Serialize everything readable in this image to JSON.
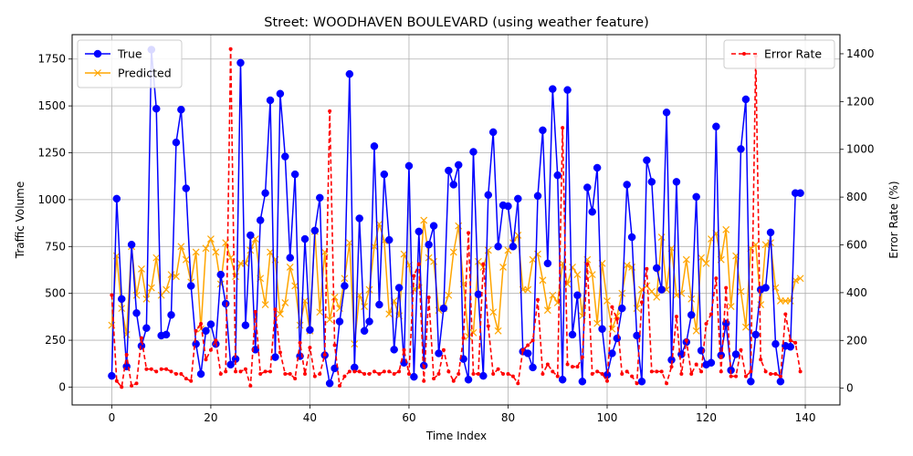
{
  "chart_data": {
    "type": "line",
    "title": "Street: WOODHAVEN BOULEVARD (using weather feature)",
    "xlabel": "Time Index",
    "ylabel": "Traffic Volume",
    "ylabel_right": "Error Rate (%)",
    "xlim": [
      -8,
      147
    ],
    "ylim": [
      -95,
      1880
    ],
    "ylim_right": [
      -70,
      1480
    ],
    "xticks": [
      0,
      20,
      40,
      60,
      80,
      100,
      120,
      140
    ],
    "yticks": [
      0,
      250,
      500,
      750,
      1000,
      1250,
      1500,
      1750
    ],
    "yticks_right": [
      0,
      200,
      400,
      600,
      800,
      1000,
      1200,
      1400
    ],
    "grid": true,
    "legend_left": "upper-left",
    "legend_right": "upper-right",
    "x": [
      0,
      1,
      2,
      3,
      4,
      5,
      6,
      7,
      8,
      9,
      10,
      11,
      12,
      13,
      14,
      15,
      16,
      17,
      18,
      19,
      20,
      21,
      22,
      23,
      24,
      25,
      26,
      27,
      28,
      29,
      30,
      31,
      32,
      33,
      34,
      35,
      36,
      37,
      38,
      39,
      40,
      41,
      42,
      43,
      44,
      45,
      46,
      47,
      48,
      49,
      50,
      51,
      52,
      53,
      54,
      55,
      56,
      57,
      58,
      59,
      60,
      61,
      62,
      63,
      64,
      65,
      66,
      67,
      68,
      69,
      70,
      71,
      72,
      73,
      74,
      75,
      76,
      77,
      78,
      79,
      80,
      81,
      82,
      83,
      84,
      85,
      86,
      87,
      88,
      89,
      90,
      91,
      92,
      93,
      94,
      95,
      96,
      97,
      98,
      99,
      100,
      101,
      102,
      103,
      104,
      105,
      106,
      107,
      108,
      109,
      110,
      111,
      112,
      113,
      114,
      115,
      116,
      117,
      118,
      119,
      120,
      121,
      122,
      123,
      124,
      125,
      126,
      127,
      128,
      129,
      130,
      131,
      132,
      133,
      134,
      135,
      136,
      137,
      138,
      139
    ],
    "series": [
      {
        "name": "True",
        "axis": "left",
        "color": "#0000ff",
        "marker": "circle",
        "linestyle": "solid",
        "values": [
          60,
          1005,
          470,
          110,
          760,
          395,
          220,
          315,
          1800,
          1485,
          275,
          280,
          385,
          1305,
          1480,
          1060,
          540,
          230,
          70,
          300,
          335,
          230,
          600,
          445,
          120,
          150,
          1730,
          330,
          810,
          200,
          890,
          1035,
          1530,
          160,
          1565,
          1230,
          690,
          1135,
          165,
          790,
          305,
          835,
          1010,
          170,
          20,
          100,
          350,
          540,
          1670,
          105,
          900,
          300,
          350,
          1285,
          440,
          1135,
          785,
          200,
          530,
          130,
          1180,
          55,
          830,
          115,
          760,
          860,
          180,
          420,
          1155,
          1080,
          1185,
          150,
          40,
          1255,
          495,
          60,
          1025,
          1360,
          750,
          970,
          965,
          750,
          1005,
          190,
          180,
          105,
          1020,
          1370,
          660,
          1590,
          1130,
          40,
          1585,
          280,
          490,
          30,
          1065,
          935,
          1170,
          310,
          65,
          180,
          260,
          420,
          1080,
          800,
          275,
          30,
          1210,
          1095,
          635,
          520,
          1465,
          145,
          1095,
          175,
          240,
          385,
          1015,
          195,
          120,
          130,
          1390,
          170,
          340,
          90,
          175,
          1270,
          1535,
          30,
          280,
          520,
          530,
          825,
          230,
          30,
          220,
          215,
          1035,
          1035
        ]
      },
      {
        "name": "Predicted",
        "axis": "left",
        "color": "#ffa500",
        "marker": "x",
        "linestyle": "solid",
        "values": [
          330,
          700,
          420,
          280,
          750,
          490,
          630,
          470,
          530,
          690,
          490,
          520,
          600,
          590,
          750,
          680,
          560,
          720,
          310,
          740,
          790,
          720,
          550,
          770,
          690,
          590,
          660,
          660,
          730,
          790,
          580,
          440,
          720,
          680,
          390,
          450,
          640,
          540,
          330,
          460,
          300,
          830,
          400,
          720,
          360,
          480,
          420,
          580,
          770,
          230,
          490,
          430,
          520,
          750,
          870,
          780,
          390,
          460,
          380,
          710,
          650,
          520,
          530,
          890,
          690,
          670,
          410,
          420,
          490,
          720,
          860,
          550,
          270,
          290,
          670,
          640,
          730,
          400,
          300,
          640,
          730,
          770,
          810,
          520,
          520,
          680,
          710,
          570,
          410,
          490,
          450,
          660,
          550,
          640,
          600,
          380,
          680,
          600,
          340,
          660,
          460,
          310,
          380,
          500,
          650,
          640,
          420,
          520,
          540,
          510,
          480,
          800,
          520,
          740,
          490,
          500,
          680,
          470,
          300,
          690,
          660,
          790,
          820,
          680,
          840,
          430,
          700,
          510,
          320,
          740,
          760,
          440,
          760,
          770,
          530,
          460,
          460,
          460,
          570,
          580
        ]
      },
      {
        "name": "Error Rate",
        "axis": "right",
        "color": "#ff0000",
        "marker": "dot",
        "linestyle": "dashed",
        "values": [
          390,
          30,
          5,
          140,
          10,
          20,
          210,
          80,
          80,
          70,
          80,
          80,
          70,
          60,
          60,
          40,
          30,
          240,
          270,
          120,
          160,
          200,
          60,
          70,
          1420,
          70,
          70,
          80,
          10,
          320,
          60,
          70,
          70,
          330,
          150,
          60,
          60,
          40,
          190,
          60,
          170,
          50,
          60,
          140,
          1160,
          180,
          10,
          50,
          70,
          70,
          70,
          60,
          60,
          70,
          60,
          70,
          70,
          60,
          70,
          160,
          60,
          470,
          520,
          30,
          380,
          40,
          60,
          160,
          70,
          30,
          60,
          210,
          650,
          60,
          60,
          520,
          260,
          60,
          80,
          60,
          60,
          50,
          20,
          160,
          180,
          200,
          370,
          60,
          100,
          70,
          50,
          1090,
          100,
          90,
          90,
          130,
          520,
          60,
          70,
          60,
          30,
          340,
          290,
          60,
          70,
          50,
          20,
          360,
          500,
          70,
          70,
          70,
          20,
          90,
          300,
          60,
          200,
          60,
          100,
          70,
          270,
          310,
          460,
          70,
          420,
          50,
          50,
          160,
          50,
          70,
          1390,
          120,
          70,
          60,
          60,
          50,
          310,
          200,
          190,
          70
        ]
      }
    ]
  }
}
